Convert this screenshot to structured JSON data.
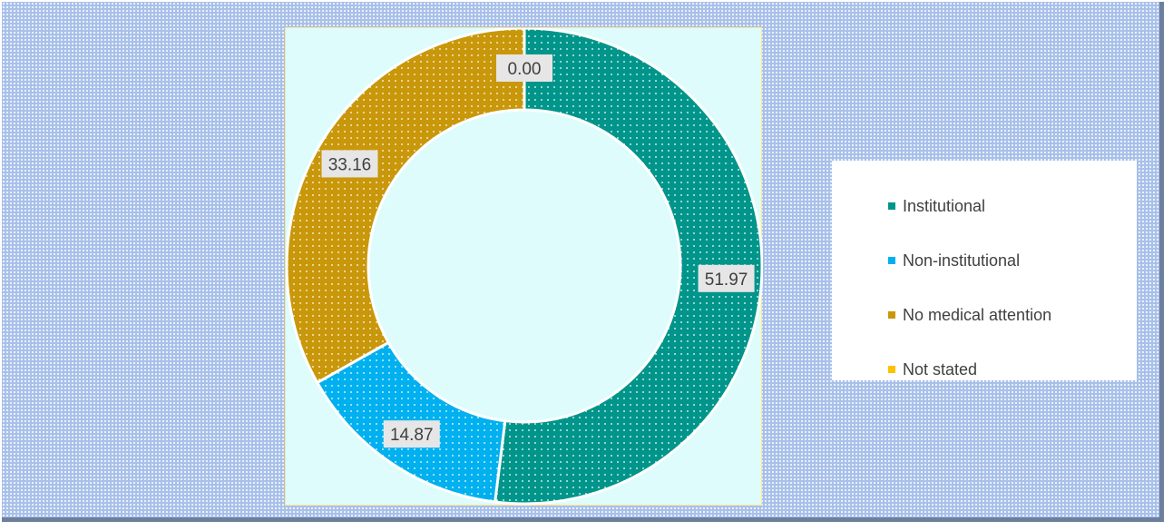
{
  "chart_data": {
    "type": "pie",
    "variant": "donut",
    "title": "",
    "categories": [
      "Institutional",
      "Non-institutional",
      "No medical attention",
      "Not stated"
    ],
    "values": [
      51.97,
      14.87,
      33.16,
      0.0
    ],
    "labels": [
      "51.97",
      "14.87",
      "33.16",
      "0.00"
    ],
    "colors": [
      "#00958a",
      "#00b0ef",
      "#c9970a",
      "#ffc000"
    ],
    "legend_position": "right",
    "start_angle": "top (12 o'clock), clockwise"
  },
  "legend": {
    "items": [
      {
        "label": "Institutional",
        "color": "#00958a"
      },
      {
        "label": "Non-institutional",
        "color": "#00b0ef"
      },
      {
        "label": "No medical attention",
        "color": "#c9970a"
      },
      {
        "label": "Not stated",
        "color": "#ffc000"
      }
    ]
  }
}
